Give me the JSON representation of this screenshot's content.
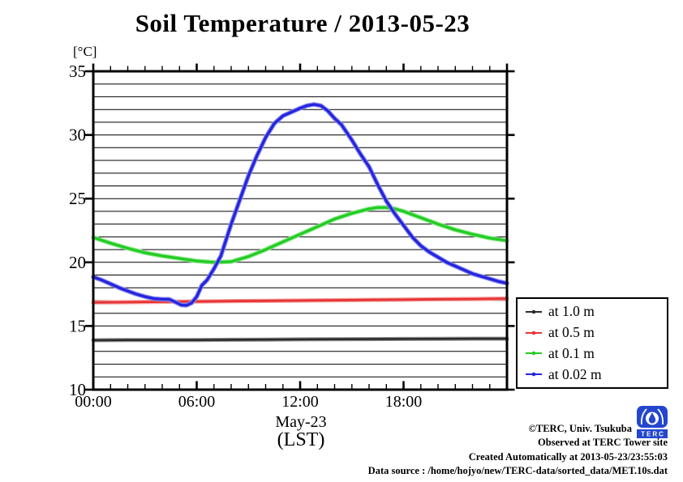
{
  "title": "Soil Temperature / 2013-05-23",
  "axis": {
    "unit_label": "[°C]",
    "y_ticks": [
      35,
      30,
      25,
      20,
      15,
      10
    ],
    "x_ticks": [
      {
        "hour": 0,
        "label": "00:00"
      },
      {
        "hour": 6,
        "label": "06:00"
      },
      {
        "hour": 12,
        "label": "12:00"
      },
      {
        "hour": 18,
        "label": "18:00"
      }
    ],
    "x_sub_label": "May-23",
    "x_sub_label2": "(LST)"
  },
  "legend": {
    "items": [
      {
        "label": "at 1.0 m",
        "color": "#2b2b2b"
      },
      {
        "label": "at 0.5 m",
        "color": "#e83333"
      },
      {
        "label": "at 0.1 m",
        "color": "#22cc22"
      },
      {
        "label": "at 0.02 m",
        "color": "#2424dd"
      }
    ]
  },
  "footer": {
    "lines": [
      "©TERC, Univ. Tsukuba",
      "Observed at TERC Tower site",
      "Created Automatically at 2013-05-23/23:55:03",
      "Data source : /home/hojyo/new/TERC-data/sorted_data/MET.10s.dat"
    ]
  },
  "logo": {
    "text": "TERC"
  },
  "chart_data": {
    "type": "line",
    "title": "Soil Temperature / 2013-05-23",
    "xlabel": "May-23 (LST)",
    "ylabel": "[°C]",
    "xlim": [
      0,
      24
    ],
    "ylim": [
      10,
      35
    ],
    "grid": "horizontal lines every 1 °C",
    "x_unit": "hour of day (LST)",
    "legend_position": "outside right-bottom",
    "series": [
      {
        "name": "at 1.0 m",
        "depth_m": 1.0,
        "color": "#2b2b2b",
        "halo": "#909090",
        "width": 2.6,
        "points": [
          [
            0,
            13.88
          ],
          [
            2,
            13.9
          ],
          [
            4,
            13.9
          ],
          [
            6,
            13.9
          ],
          [
            8,
            13.92
          ],
          [
            10,
            13.93
          ],
          [
            12,
            13.95
          ],
          [
            14,
            13.96
          ],
          [
            16,
            13.97
          ],
          [
            18,
            13.98
          ],
          [
            20,
            13.99
          ],
          [
            22,
            14.0
          ],
          [
            24,
            14.0
          ]
        ]
      },
      {
        "name": "at 0.5 m",
        "depth_m": 0.5,
        "color": "#e83333",
        "halo": "#f49c9c",
        "width": 2.8,
        "points": [
          [
            0,
            16.85
          ],
          [
            2,
            16.87
          ],
          [
            4,
            16.9
          ],
          [
            6,
            16.92
          ],
          [
            8,
            16.95
          ],
          [
            10,
            16.97
          ],
          [
            12,
            17.0
          ],
          [
            14,
            17.02
          ],
          [
            16,
            17.05
          ],
          [
            18,
            17.07
          ],
          [
            20,
            17.1
          ],
          [
            22,
            17.12
          ],
          [
            24,
            17.15
          ]
        ]
      },
      {
        "name": "at 0.1 m",
        "depth_m": 0.1,
        "color": "#22cc22",
        "halo": "#8fe88f",
        "width": 3.2,
        "points": [
          [
            0,
            21.95
          ],
          [
            1,
            21.5
          ],
          [
            2,
            21.1
          ],
          [
            3,
            20.75
          ],
          [
            4,
            20.5
          ],
          [
            5,
            20.3
          ],
          [
            6,
            20.1
          ],
          [
            7,
            20.0
          ],
          [
            8,
            20.05
          ],
          [
            9,
            20.45
          ],
          [
            10,
            21.0
          ],
          [
            11,
            21.6
          ],
          [
            12,
            22.2
          ],
          [
            13,
            22.8
          ],
          [
            14,
            23.4
          ],
          [
            15,
            23.85
          ],
          [
            16,
            24.2
          ],
          [
            16.5,
            24.3
          ],
          [
            17,
            24.3
          ],
          [
            17.5,
            24.2
          ],
          [
            18,
            24.0
          ],
          [
            19,
            23.5
          ],
          [
            20,
            23.0
          ],
          [
            21,
            22.55
          ],
          [
            22,
            22.2
          ],
          [
            23,
            21.9
          ],
          [
            24,
            21.7
          ]
        ]
      },
      {
        "name": "at 0.02 m",
        "depth_m": 0.02,
        "color": "#2424dd",
        "halo": "#8888f0",
        "width": 3.2,
        "points": [
          [
            0,
            18.85
          ],
          [
            0.5,
            18.6
          ],
          [
            1,
            18.3
          ],
          [
            1.5,
            18.0
          ],
          [
            2,
            17.75
          ],
          [
            2.5,
            17.5
          ],
          [
            3,
            17.3
          ],
          [
            3.5,
            17.15
          ],
          [
            4,
            17.1
          ],
          [
            4.4,
            17.1
          ],
          [
            4.8,
            16.85
          ],
          [
            5.1,
            16.65
          ],
          [
            5.4,
            16.62
          ],
          [
            5.7,
            16.8
          ],
          [
            6,
            17.3
          ],
          [
            6.3,
            18.2
          ],
          [
            6.6,
            18.6
          ],
          [
            7,
            19.5
          ],
          [
            7.4,
            20.5
          ],
          [
            8,
            23.0
          ],
          [
            8.5,
            24.9
          ],
          [
            9,
            26.8
          ],
          [
            9.5,
            28.4
          ],
          [
            10,
            29.8
          ],
          [
            10.5,
            30.9
          ],
          [
            11,
            31.5
          ],
          [
            11.5,
            31.8
          ],
          [
            12,
            32.1
          ],
          [
            12.4,
            32.3
          ],
          [
            12.8,
            32.4
          ],
          [
            13.2,
            32.3
          ],
          [
            13.6,
            31.9
          ],
          [
            14,
            31.3
          ],
          [
            14.4,
            30.8
          ],
          [
            15,
            29.6
          ],
          [
            15.5,
            28.5
          ],
          [
            16,
            27.5
          ],
          [
            16.5,
            26.1
          ],
          [
            17,
            24.8
          ],
          [
            17.5,
            23.8
          ],
          [
            18,
            22.9
          ],
          [
            18.5,
            22.0
          ],
          [
            19,
            21.3
          ],
          [
            19.5,
            20.8
          ],
          [
            20,
            20.4
          ],
          [
            20.5,
            20.0
          ],
          [
            21,
            19.7
          ],
          [
            21.5,
            19.4
          ],
          [
            22,
            19.1
          ],
          [
            22.5,
            18.9
          ],
          [
            23,
            18.7
          ],
          [
            23.5,
            18.5
          ],
          [
            24,
            18.35
          ]
        ]
      }
    ]
  }
}
